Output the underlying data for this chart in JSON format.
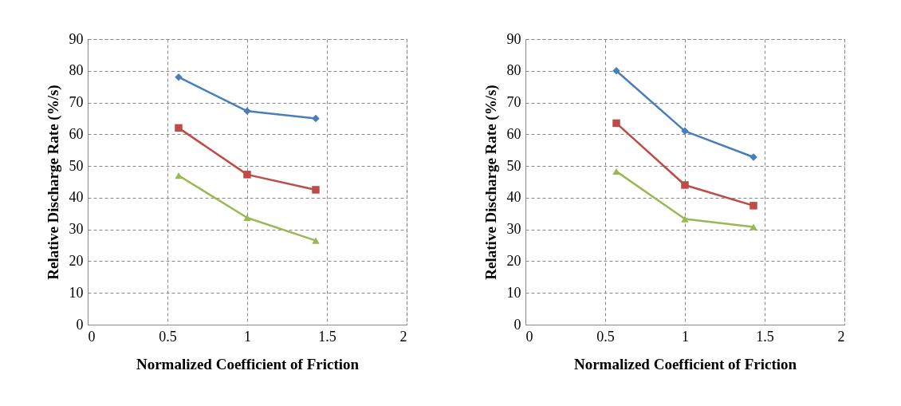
{
  "chart_data": [
    {
      "type": "line",
      "xlabel": "Normalized Coefficient of Friction",
      "ylabel": "Relative Discharge Rate (%/s)",
      "xlim": [
        0,
        2
      ],
      "xticks": [
        0,
        0.5,
        1,
        1.5,
        2
      ],
      "ylim": [
        0,
        90
      ],
      "yticks": [
        0,
        10,
        20,
        30,
        40,
        50,
        60,
        70,
        80,
        90
      ],
      "grid": true,
      "line_style": "solid",
      "x": [
        0.57,
        1,
        1.43
      ],
      "series": [
        {
          "color": "#4a7ebb",
          "marker": "diamond",
          "values": [
            78,
            67.3,
            65
          ]
        },
        {
          "color": "#be4b48",
          "marker": "square",
          "values": [
            62,
            47.3,
            42.5
          ]
        },
        {
          "color": "#98b954",
          "marker": "triangle",
          "values": [
            47,
            33.7,
            26.5
          ]
        }
      ]
    },
    {
      "type": "line",
      "xlabel": "Normalized Coefficient of Friction",
      "ylabel": "Relative Discharge Rate (%/s)",
      "xlim": [
        0,
        2
      ],
      "xticks": [
        0,
        0.5,
        1,
        1.5,
        2
      ],
      "ylim": [
        0,
        90
      ],
      "yticks": [
        0,
        10,
        20,
        30,
        40,
        50,
        60,
        70,
        80,
        90
      ],
      "grid": true,
      "line_style": "solid",
      "x": [
        0.57,
        1,
        1.43
      ],
      "series": [
        {
          "color": "#4a7ebb",
          "marker": "diamond",
          "values": [
            80,
            61,
            52.8
          ]
        },
        {
          "color": "#be4b48",
          "marker": "square",
          "values": [
            63.5,
            44,
            37.5
          ]
        },
        {
          "color": "#98b954",
          "marker": "triangle",
          "values": [
            48.3,
            33.3,
            30.8
          ]
        }
      ]
    }
  ]
}
